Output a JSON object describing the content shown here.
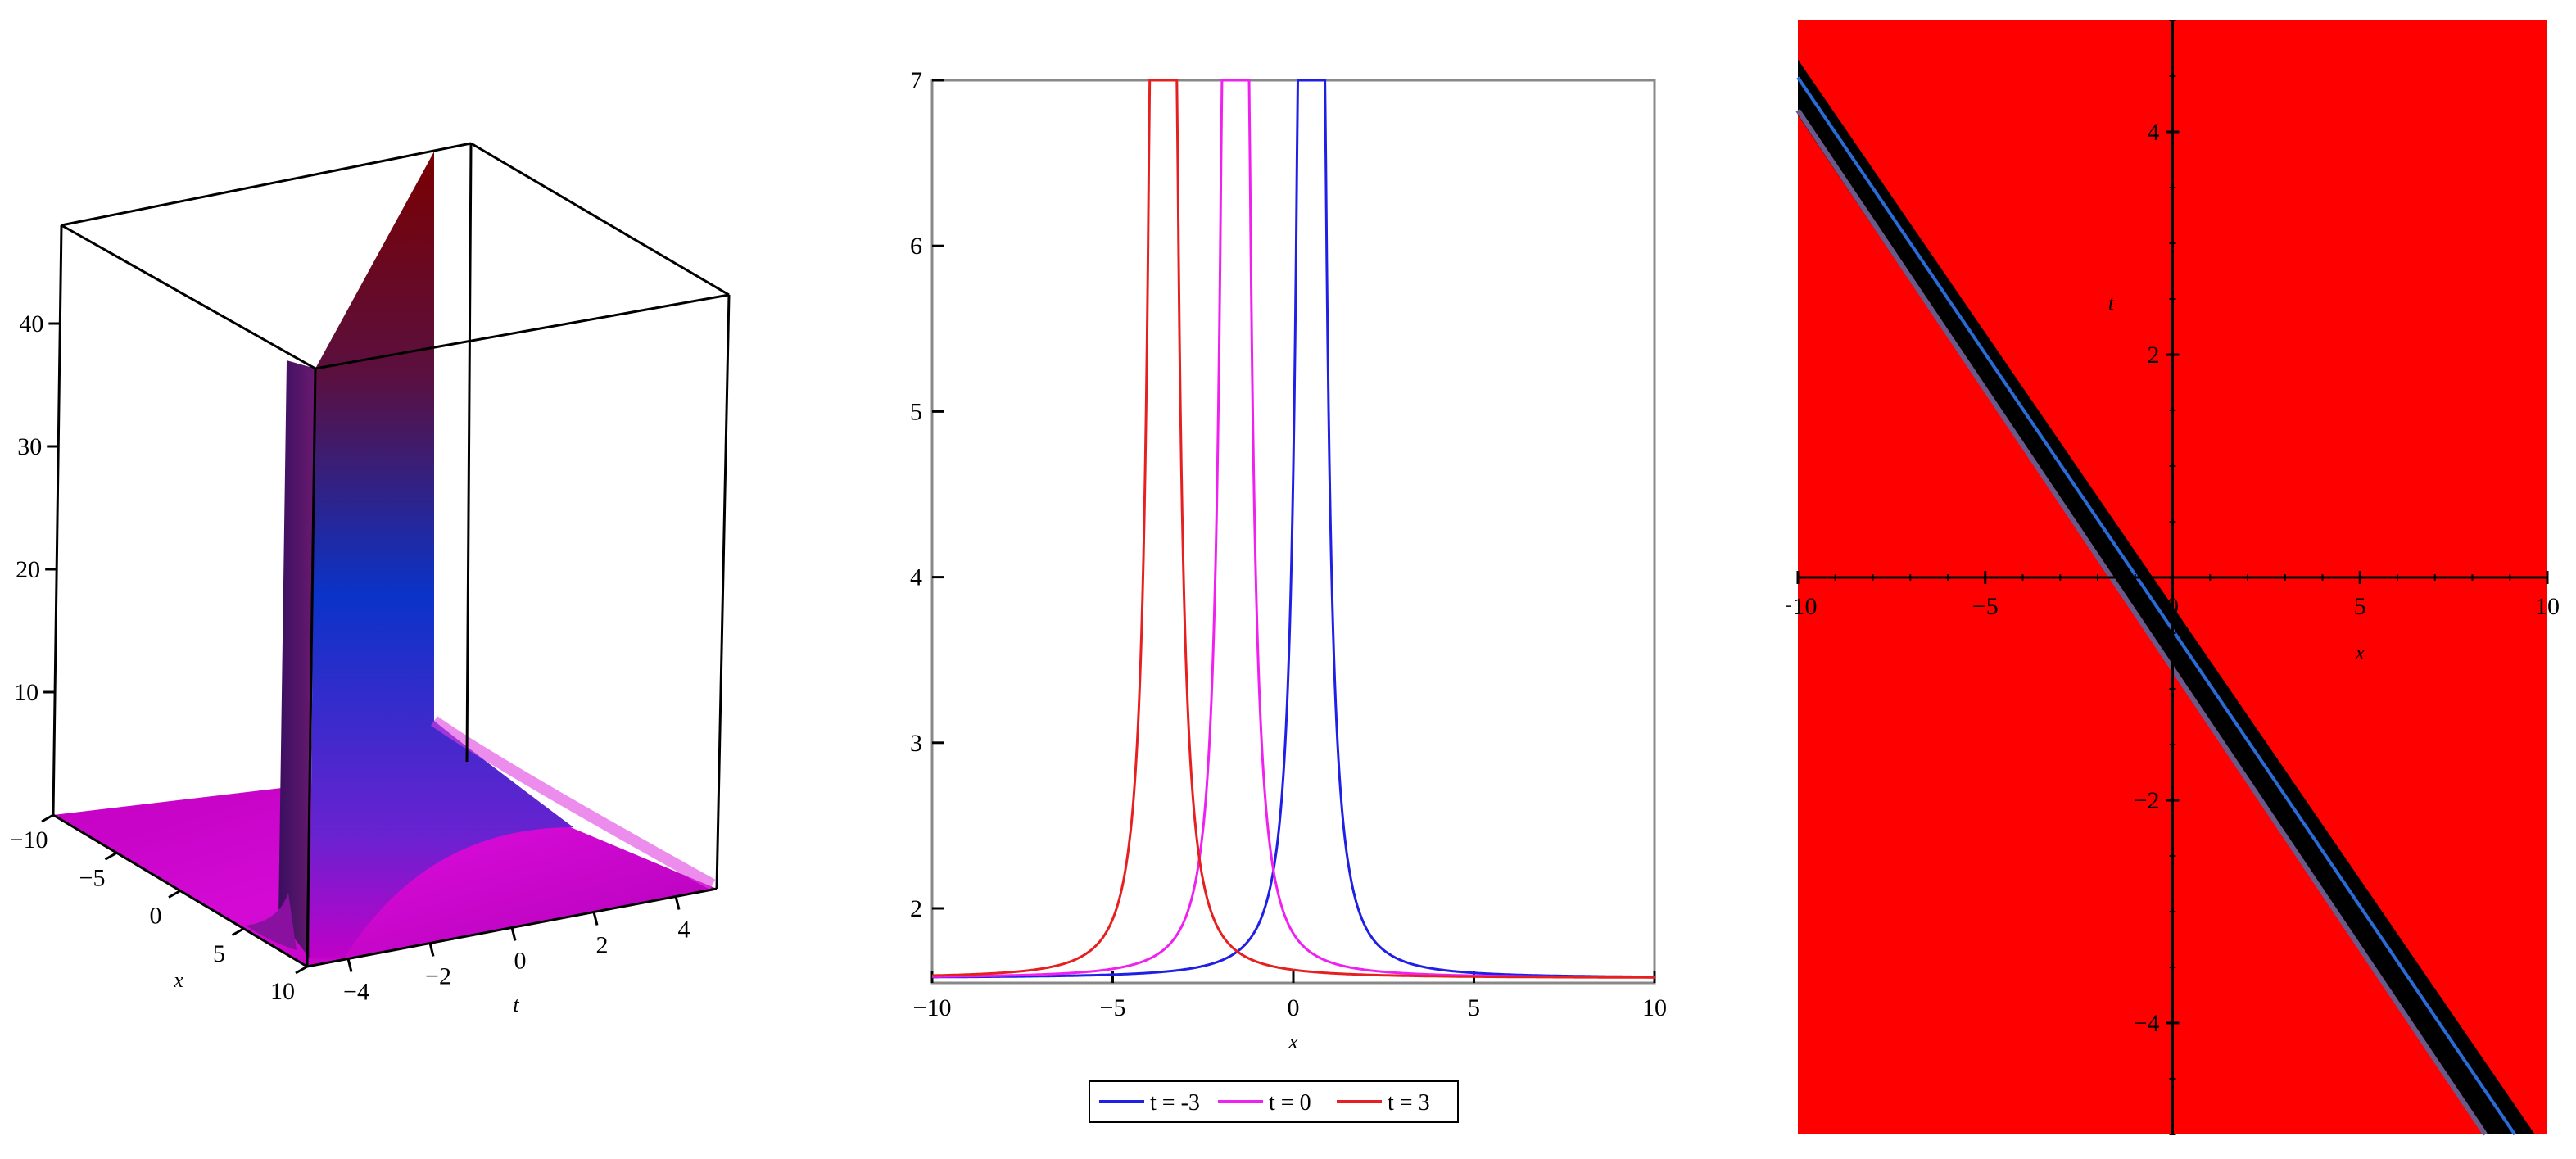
{
  "chart_data": [
    {
      "type": "surface3d",
      "xlabel": "x",
      "ylabel": "t",
      "zlabel": "",
      "x_range": [
        -10,
        10
      ],
      "t_range": [
        -5,
        5
      ],
      "z_range": [
        0,
        48
      ],
      "x_ticks": [
        "-10",
        "-5",
        "0",
        "5",
        "10"
      ],
      "t_ticks": [
        "-4",
        "-2",
        "0",
        "2",
        "4"
      ],
      "z_ticks": [
        "10",
        "20",
        "30",
        "40"
      ],
      "colors": {
        "base": "#b800b8",
        "mid": "#0a33c8",
        "peak": "#7a0000",
        "frame": "#000000"
      }
    },
    {
      "type": "line",
      "xlabel": "x",
      "ylabel": "",
      "xlim": [
        -10,
        10
      ],
      "ylim": [
        1.55,
        7
      ],
      "x_ticks": [
        "-10",
        "-5",
        "0",
        "5",
        "10"
      ],
      "y_ticks": [
        "2",
        "3",
        "4",
        "5",
        "6",
        "7"
      ],
      "baseline": 1.58,
      "legend_position": "bottom",
      "series": [
        {
          "name": "t = -3",
          "color": "#1f1fe6",
          "center": 0.5
        },
        {
          "name": "t = 0",
          "color": "#f020f0",
          "center": -1.6
        },
        {
          "name": "t = 3",
          "color": "#e62020",
          "center": -3.6
        }
      ]
    },
    {
      "type": "contour",
      "xlabel": "x",
      "ylabel": "t",
      "xlim": [
        -10,
        10
      ],
      "ylim": [
        -5,
        5
      ],
      "x_ticks": [
        "-10",
        "-5",
        "0",
        "5",
        "10"
      ],
      "y_ticks": [
        "-4",
        "-2",
        "2",
        "4"
      ],
      "background_color": "#ff0000",
      "band_color": "#000000",
      "band_line": {
        "x1": -10,
        "t1": 4.4,
        "x2": 9,
        "t2": -5
      },
      "edge_colors": [
        "#2a6bd6",
        "#6a5a8a"
      ]
    }
  ]
}
